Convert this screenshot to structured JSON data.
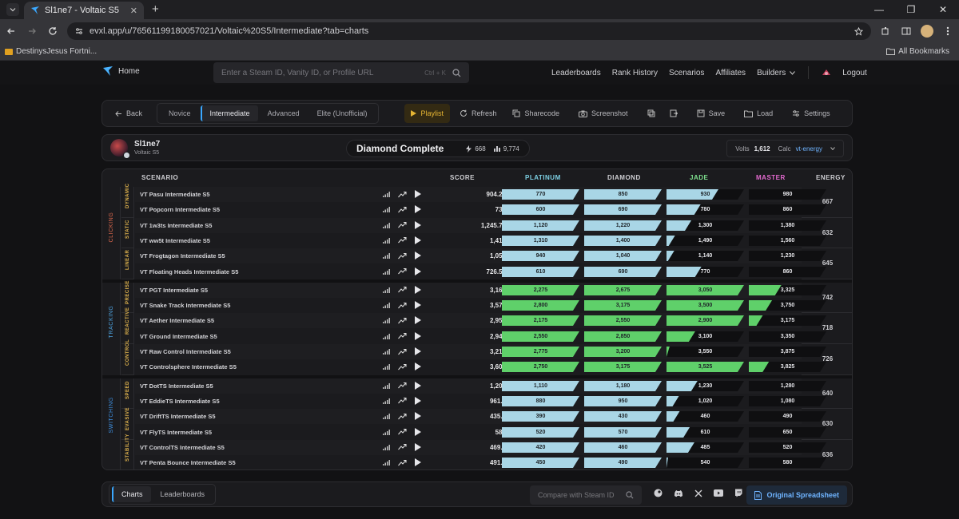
{
  "browser": {
    "tab_title": "Sl1ne7 - Voltaic S5",
    "url": "evxl.app/u/76561199180057021/Voltaic%20S5/Intermediate?tab=charts",
    "bookmark": "DestinysJesus Fortni...",
    "all_bookmarks": "All Bookmarks"
  },
  "nav": {
    "home": "Home",
    "search_placeholder": "Enter a Steam ID, Vanity ID, or Profile URL",
    "search_shortcut": "Ctrl + K",
    "links": [
      "Leaderboards",
      "Rank History",
      "Scenarios",
      "Affiliates",
      "Builders"
    ],
    "logout": "Logout"
  },
  "toolbar": {
    "back": "Back",
    "difficulties": [
      "Novice",
      "Intermediate",
      "Advanced",
      "Elite (Unofficial)"
    ],
    "active_difficulty": "Intermediate",
    "playlist": "Playlist",
    "refresh": "Refresh",
    "sharecode": "Sharecode",
    "screenshot": "Screenshot",
    "save": "Save",
    "load": "Load",
    "settings": "Settings"
  },
  "profile": {
    "name": "Sl1ne7",
    "game": "Voltaic S5",
    "rank": "Diamond Complete",
    "energy_total": "668",
    "points_total": "9,774",
    "volts_label": "Volts",
    "volts_value": "1,612",
    "calc_label": "Calc",
    "calc_value": "vt-energy"
  },
  "table": {
    "headers": {
      "scenario": "SCENARIO",
      "score": "SCORE",
      "platinum": "PLATINUM",
      "diamond": "DIAMOND",
      "jade": "JADE",
      "master": "MASTER",
      "energy": "ENERGY"
    },
    "categories": [
      {
        "label": "CLICKING",
        "color": "#e06a4e",
        "subs": [
          {
            "label": "DYNAMIC",
            "energy": "667"
          },
          {
            "label": "STATIC",
            "energy": "632"
          },
          {
            "label": "LINEAR",
            "energy": "645"
          }
        ]
      },
      {
        "label": "TRACKING",
        "color": "#4ea3e0",
        "subs": [
          {
            "label": "PRECISE",
            "energy": "742"
          },
          {
            "label": "REACTIVE",
            "energy": "718"
          },
          {
            "label": "CONTROL",
            "energy": "726"
          }
        ]
      },
      {
        "label": "SWITCHING",
        "color": "#3e8fe0",
        "subs": [
          {
            "label": "SPEED",
            "energy": "640"
          },
          {
            "label": "EVASIVE",
            "energy": "630"
          },
          {
            "label": "STABILITY",
            "energy": "636"
          }
        ]
      }
    ],
    "rows": [
      {
        "name": "VT Pasu Intermediate S5",
        "score": "904.26",
        "pct": "67%",
        "thresholds": [
          "770",
          "850",
          "930",
          "980"
        ],
        "progress": 2.67
      },
      {
        "name": "VT Popcorn Intermediate S5",
        "score": "730",
        "pct": "44%",
        "thresholds": [
          "600",
          "690",
          "780",
          "860"
        ],
        "progress": 2.44
      },
      {
        "name": "VT 1w3ts Intermediate S5",
        "score": "1,245.71",
        "pct": "32%",
        "thresholds": [
          "1,120",
          "1,220",
          "1,300",
          "1,380"
        ],
        "progress": 2.32
      },
      {
        "name": "VT ww5t Intermediate S5",
        "score": "1,410",
        "pct": "11%",
        "thresholds": [
          "1,310",
          "1,400",
          "1,490",
          "1,560"
        ],
        "progress": 2.11
      },
      {
        "name": "VT Frogtagon Intermediate S5",
        "score": "1,050",
        "pct": "10%",
        "thresholds": [
          "940",
          "1,040",
          "1,140",
          "1,230"
        ],
        "progress": 2.1
      },
      {
        "name": "VT Floating Heads Intermediate S5",
        "score": "726.52",
        "pct": "45%",
        "thresholds": [
          "610",
          "690",
          "770",
          "860"
        ],
        "progress": 2.45
      },
      {
        "name": "VT PGT Intermediate S5",
        "score": "3,166",
        "pct": "42%",
        "thresholds": [
          "2,275",
          "2,675",
          "3,050",
          "3,325"
        ],
        "progress": 3.42
      },
      {
        "name": "VT Snake Track Intermediate S5",
        "score": "3,575",
        "pct": "30%",
        "thresholds": [
          "2,800",
          "3,175",
          "3,500",
          "3,750"
        ],
        "progress": 3.3
      },
      {
        "name": "VT Aether Intermediate S5",
        "score": "2,951",
        "pct": "18%",
        "thresholds": [
          "2,175",
          "2,550",
          "2,900",
          "3,175"
        ],
        "progress": 3.18
      },
      {
        "name": "VT Ground Intermediate S5",
        "score": "2,944",
        "pct": "37%",
        "thresholds": [
          "2,550",
          "2,850",
          "3,100",
          "3,350"
        ],
        "progress": 2.37
      },
      {
        "name": "VT Raw Control Intermediate S5",
        "score": "3,217",
        "pct": "4%",
        "thresholds": [
          "2,775",
          "3,200",
          "3,550",
          "3,875"
        ],
        "progress": 2.04
      },
      {
        "name": "VT Controlsphere Intermediate S5",
        "score": "3,605",
        "pct": "26%",
        "thresholds": [
          "2,750",
          "3,175",
          "3,525",
          "3,825"
        ],
        "progress": 3.26
      },
      {
        "name": "VT DotTS Intermediate S5",
        "score": "1,200",
        "pct": "40%",
        "thresholds": [
          "1,110",
          "1,180",
          "1,230",
          "1,280"
        ],
        "progress": 2.4
      },
      {
        "name": "VT EddieTS Intermediate S5",
        "score": "961.5",
        "pct": "16%",
        "thresholds": [
          "880",
          "950",
          "1,020",
          "1,080"
        ],
        "progress": 2.16
      },
      {
        "name": "VT DriftTS Intermediate S5",
        "score": "435.2",
        "pct": "17%",
        "thresholds": [
          "390",
          "430",
          "460",
          "490"
        ],
        "progress": 2.17
      },
      {
        "name": "VT FlyTS Intermediate S5",
        "score": "582",
        "pct": "30%",
        "thresholds": [
          "520",
          "570",
          "610",
          "650"
        ],
        "progress": 2.3
      },
      {
        "name": "VT ControlTS Intermediate S5",
        "score": "469.2",
        "pct": "36%",
        "thresholds": [
          "420",
          "460",
          "485",
          "520"
        ],
        "progress": 2.36
      },
      {
        "name": "VT Penta Bounce Intermediate S5",
        "score": "491.4",
        "pct": "2%",
        "thresholds": [
          "450",
          "490",
          "540",
          "580"
        ],
        "progress": 2.02
      }
    ],
    "colors": {
      "clicking_fill": "#a9d6e6",
      "tracking_fill": "#5fd06a",
      "empty": "#0f0f11",
      "platinum": "#7ed2e6",
      "jade": "#7ee08e",
      "master": "#e46ad0"
    }
  },
  "footer": {
    "tabs": [
      "Charts",
      "Leaderboards"
    ],
    "active_tab": "Charts",
    "compare_placeholder": "Compare with Steam ID",
    "original_spreadsheet": "Original Spreadsheet"
  }
}
